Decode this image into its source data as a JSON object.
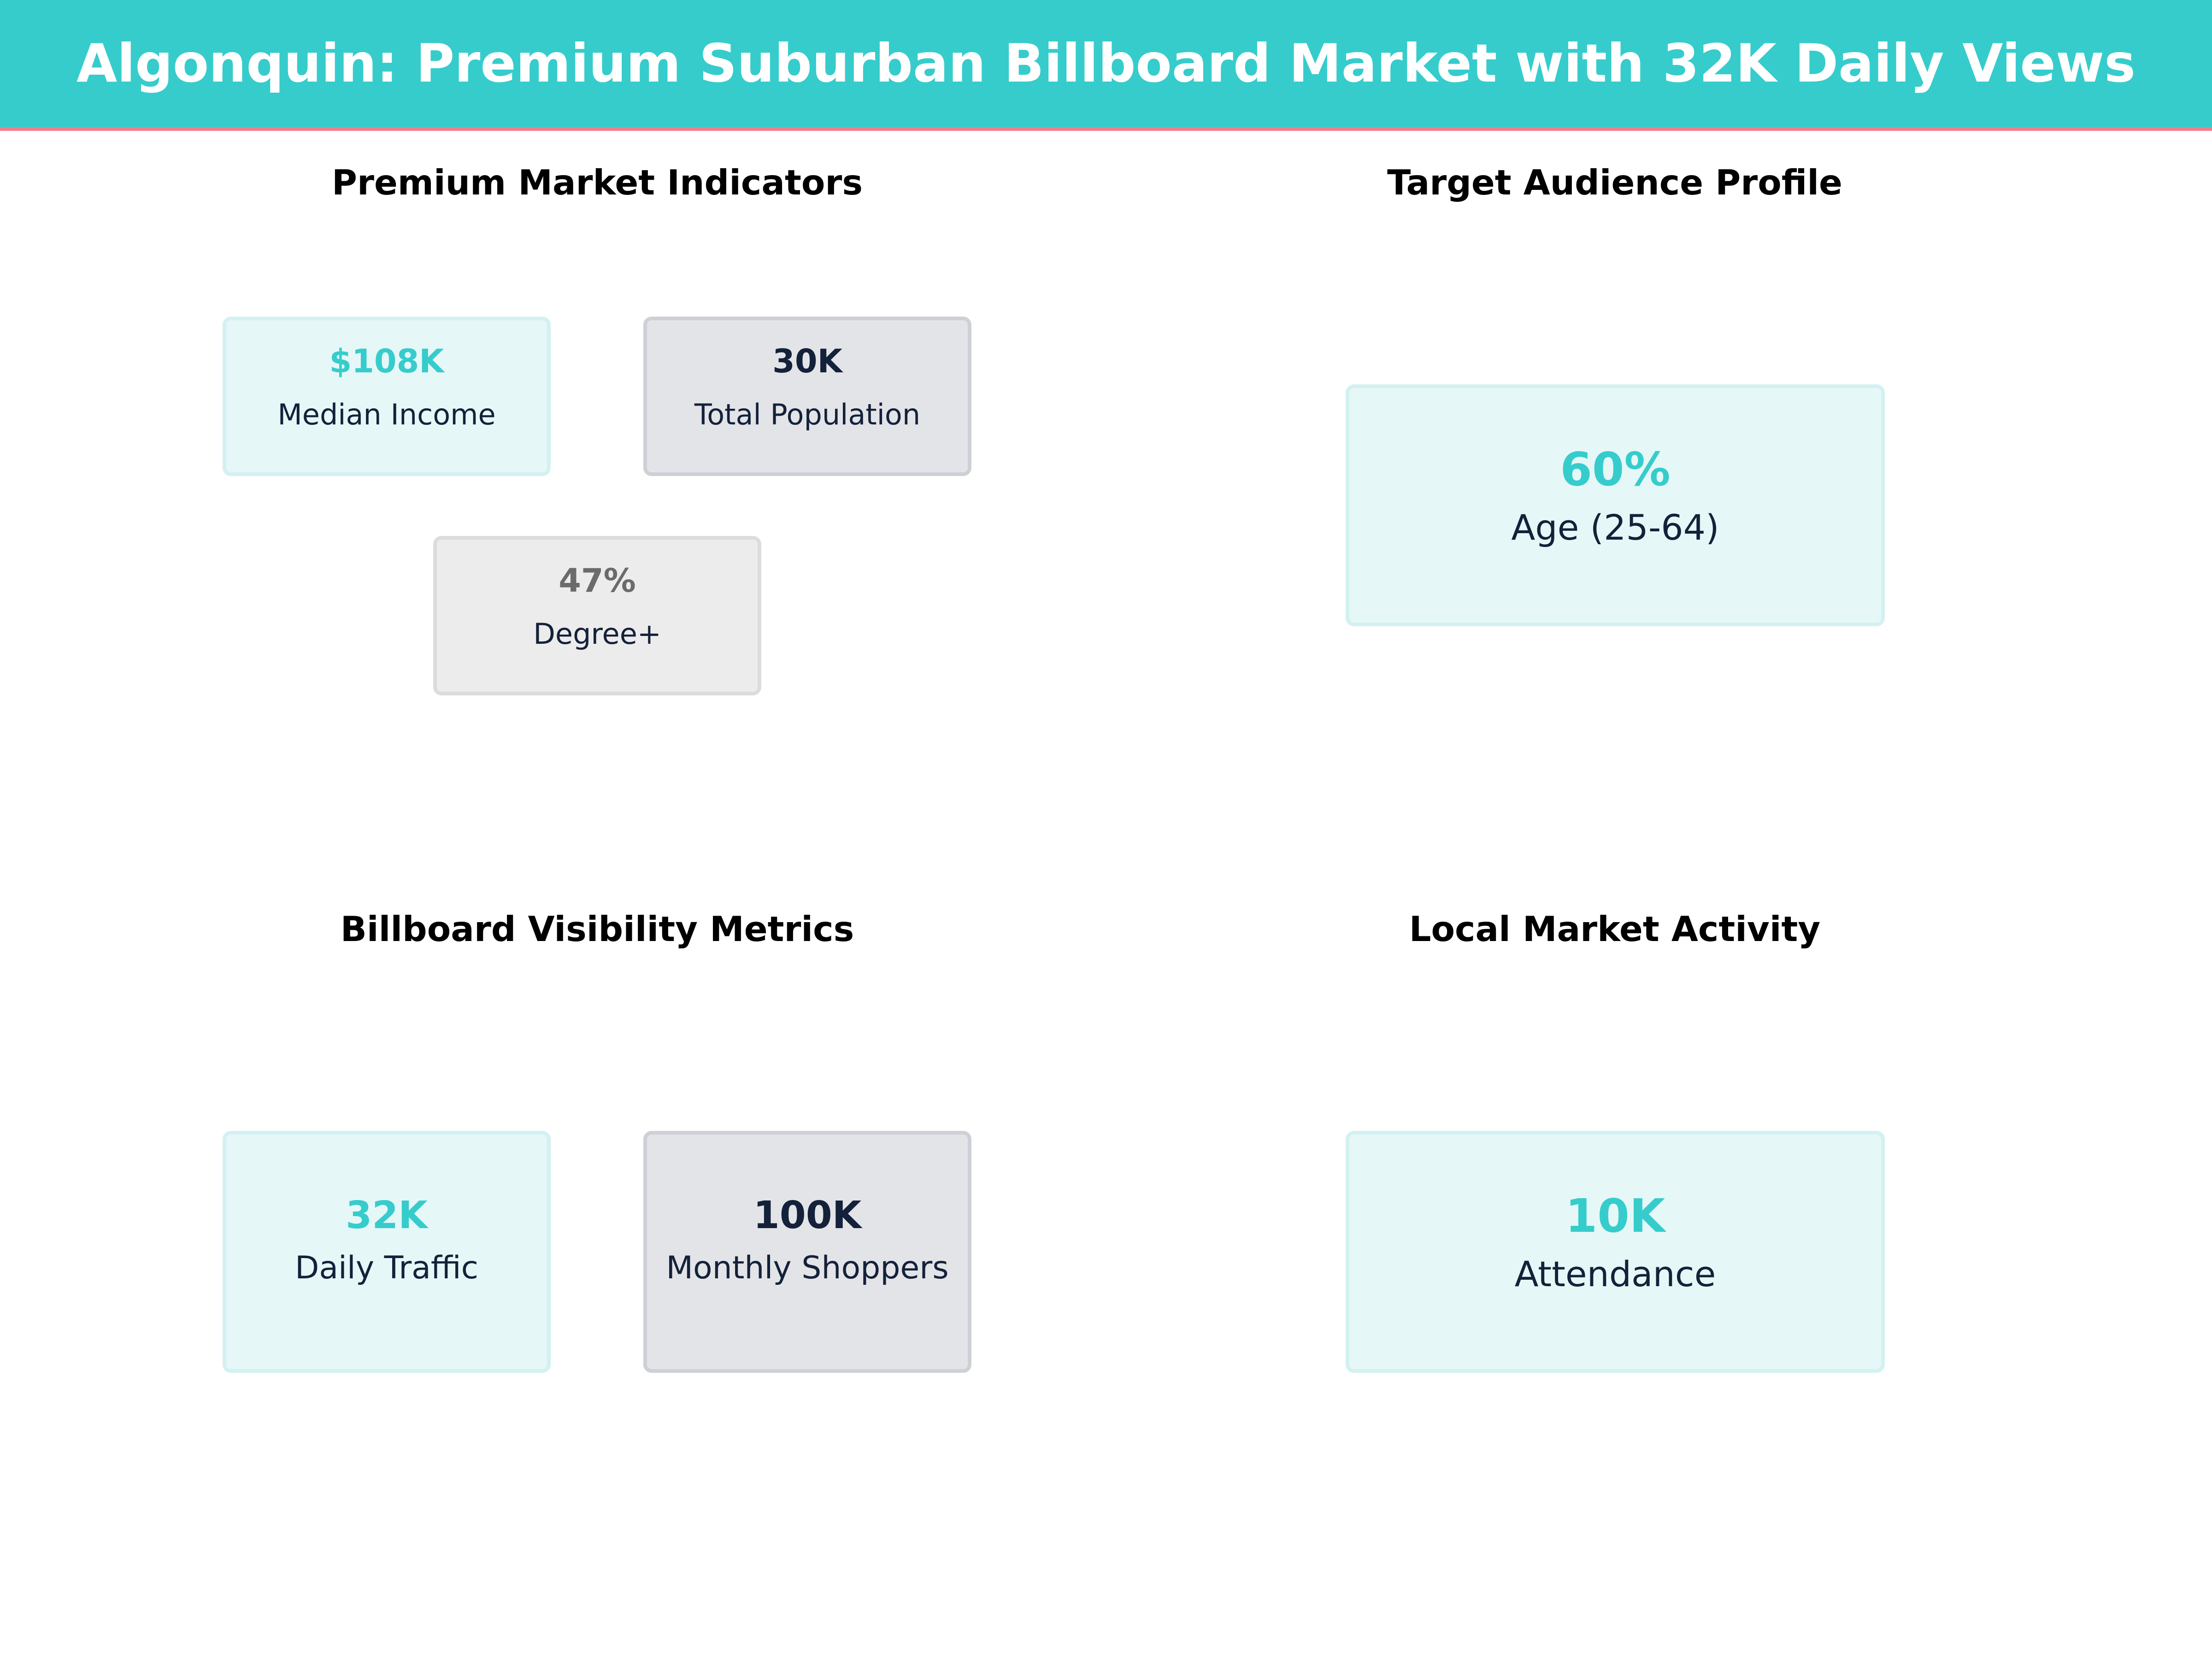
{
  "header": {
    "title": "Algonquin: Premium Suburban Billboard Market with 32K Daily Views"
  },
  "colors": {
    "accent": "#36cccc",
    "header_underline": "#f27f8c",
    "navy": "#14213a",
    "gray": "#6b6b6b"
  },
  "sections": {
    "premium": {
      "title": "Premium Market Indicators",
      "cards": [
        {
          "value": "$108K",
          "label": "Median Income"
        },
        {
          "value": "30K",
          "label": "Total Population"
        },
        {
          "value": "47%",
          "label": "Degree+"
        }
      ]
    },
    "audience": {
      "title": "Target Audience Profile",
      "cards": [
        {
          "value": "60%",
          "label": "Age (25-64)"
        }
      ]
    },
    "visibility": {
      "title": "Billboard Visibility Metrics",
      "cards": [
        {
          "value": "32K",
          "label": "Daily Traffic"
        },
        {
          "value": "100K",
          "label": "Monthly Shoppers"
        }
      ]
    },
    "activity": {
      "title": "Local Market Activity",
      "cards": [
        {
          "value": "10K",
          "label": "Attendance"
        }
      ]
    }
  }
}
